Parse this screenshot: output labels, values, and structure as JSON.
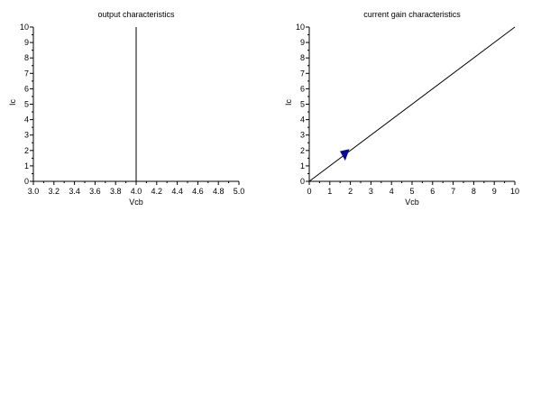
{
  "chart_data": [
    {
      "type": "line",
      "title": "output characteristics",
      "xlabel": "Vcb",
      "ylabel": "Ic",
      "xlim": [
        3.0,
        5.0
      ],
      "ylim": [
        0,
        10
      ],
      "xticks": [
        "3.0",
        "3.2",
        "3.4",
        "3.6",
        "3.8",
        "4.0",
        "4.2",
        "4.4",
        "4.6",
        "4.8",
        "5.0"
      ],
      "yticks": [
        "0",
        "1",
        "2",
        "3",
        "4",
        "5",
        "6",
        "7",
        "8",
        "9",
        "10"
      ],
      "grid": false,
      "series": [
        {
          "x": [
            4.0,
            4.0
          ],
          "y": [
            0,
            10
          ],
          "color": "#000000"
        }
      ]
    },
    {
      "type": "line",
      "title": "current gain characteristics",
      "xlabel": "Vcb",
      "ylabel": "Ic",
      "xlim": [
        0,
        10
      ],
      "ylim": [
        0,
        10
      ],
      "xticks": [
        "0",
        "1",
        "2",
        "3",
        "4",
        "5",
        "6",
        "7",
        "8",
        "9",
        "10"
      ],
      "yticks": [
        "0",
        "1",
        "2",
        "3",
        "4",
        "5",
        "6",
        "7",
        "8",
        "9",
        "10"
      ],
      "grid": false,
      "series": [
        {
          "x": [
            0,
            10
          ],
          "y": [
            0,
            10
          ],
          "color": "#000000"
        }
      ],
      "annotations": [
        {
          "type": "arrow-marker",
          "x": 1.7,
          "y": 1.7,
          "color": "#0a0a8c"
        }
      ]
    }
  ]
}
